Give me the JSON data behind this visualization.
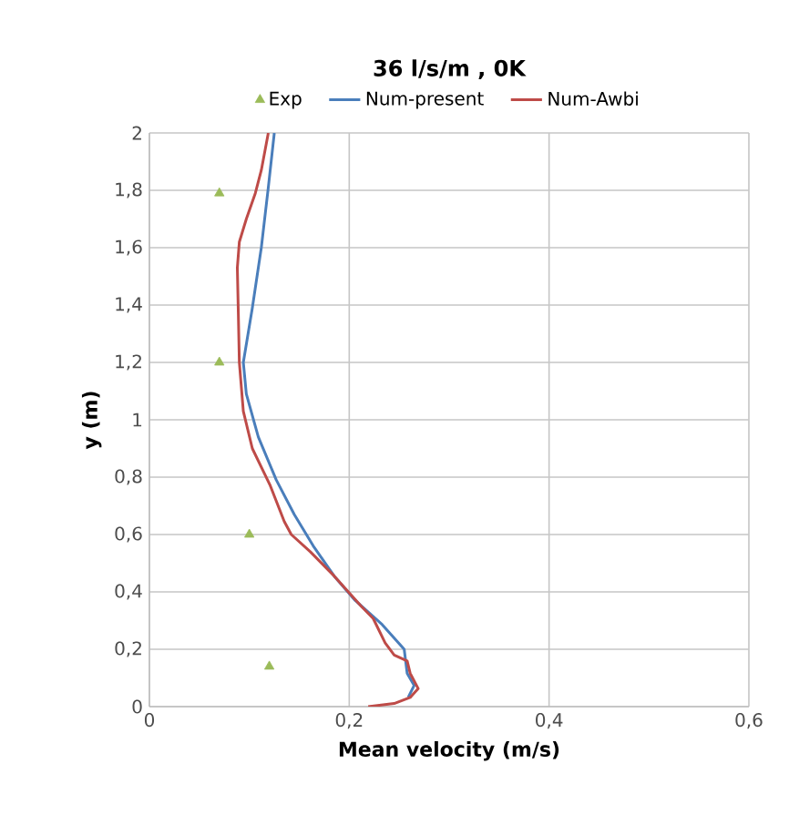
{
  "chart_data": {
    "type": "line",
    "title": "36 l/s/m  ,   0K",
    "xlabel": "Mean velocity (m/s)",
    "ylabel": "y (m)",
    "xlim": [
      0,
      0.6
    ],
    "ylim": [
      0,
      2
    ],
    "xticks": [
      0,
      {
        "value": 0.2,
        "label": "0,2"
      },
      {
        "value": 0.4,
        "label": "0,4"
      },
      {
        "value": 0.6,
        "label": "0,6"
      }
    ],
    "yticks": [
      0,
      {
        "value": 0.2,
        "label": "0,2"
      },
      {
        "value": 0.4,
        "label": "0,4"
      },
      {
        "value": 0.6,
        "label": "0,6"
      },
      {
        "value": 0.8,
        "label": "0,8"
      },
      1,
      {
        "value": 1.2,
        "label": "1,2"
      },
      {
        "value": 1.4,
        "label": "1,4"
      },
      {
        "value": 1.6,
        "label": "1,6"
      },
      {
        "value": 1.8,
        "label": "1,8"
      },
      2
    ],
    "grid": true,
    "legend": "top",
    "series": [
      {
        "name": "Exp",
        "type": "scatter",
        "marker": "triangle",
        "color": "#9bbb59",
        "x": [
          0.07,
          0.07,
          0.1,
          0.12
        ],
        "values": [
          1.79,
          1.2,
          0.6,
          0.14
        ]
      },
      {
        "name": "Num-present",
        "marker": "none",
        "color": "#4a7ebb",
        "x": [
          0.125,
          0.119,
          0.112,
          0.103,
          0.094,
          0.097,
          0.109,
          0.127,
          0.145,
          0.164,
          0.185,
          0.206,
          0.233,
          0.255,
          0.258,
          0.265,
          0.259
        ],
        "values": [
          2.0,
          1.81,
          1.6,
          1.39,
          1.2,
          1.09,
          0.94,
          0.79,
          0.67,
          0.56,
          0.455,
          0.37,
          0.286,
          0.2,
          0.116,
          0.074,
          0.032
        ]
      },
      {
        "name": "Num-Awbi",
        "marker": "none",
        "color": "#be4b48",
        "x": [
          0.119,
          0.112,
          0.106,
          0.097,
          0.09,
          0.088,
          0.089,
          0.09,
          0.094,
          0.103,
          0.121,
          0.135,
          0.142,
          0.161,
          0.185,
          0.212,
          0.224,
          0.236,
          0.245,
          0.258,
          0.261,
          0.269,
          0.261,
          0.245,
          0.219
        ],
        "values": [
          2.0,
          1.87,
          1.79,
          1.7,
          1.62,
          1.53,
          1.37,
          1.2,
          1.03,
          0.9,
          0.77,
          0.645,
          0.6,
          0.54,
          0.455,
          0.35,
          0.307,
          0.222,
          0.18,
          0.159,
          0.116,
          0.063,
          0.032,
          0.011,
          0.0
        ]
      }
    ]
  }
}
